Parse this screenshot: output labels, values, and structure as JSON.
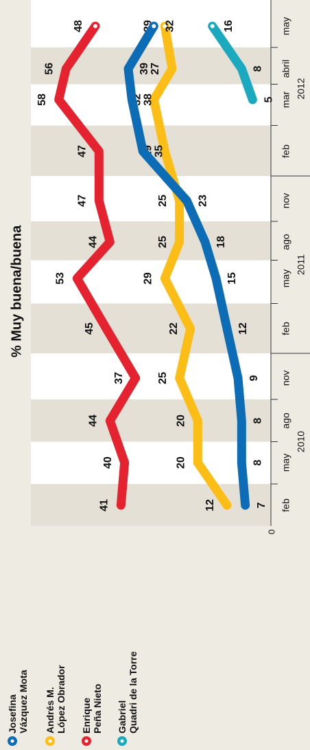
{
  "chart_data": {
    "type": "line",
    "title": "% Muy buena/buena",
    "categories": [
      "feb",
      "may",
      "ago",
      "nov",
      "feb",
      "may",
      "ago",
      "nov",
      "feb",
      "mar",
      "abril",
      "may"
    ],
    "year_labels": [
      "2010",
      "2011",
      "2012"
    ],
    "series": [
      {
        "name": "Andrés M.\nLópez Obrador",
        "color": "#fdbd17",
        "values": [
          12,
          20,
          20,
          25,
          22,
          29,
          25,
          25,
          29,
          32,
          27,
          29
        ]
      },
      {
        "name": "Josefina\nVázquez Mota",
        "color": "#0d6cb6",
        "values": [
          7,
          8,
          8,
          9,
          12,
          15,
          18,
          23,
          35,
          38,
          39,
          32
        ]
      },
      {
        "name": "Enrique\nPeña Nieto",
        "color": "#e5222f",
        "values": [
          41,
          40,
          44,
          37,
          45,
          53,
          44,
          47,
          47,
          58,
          56,
          48
        ]
      },
      {
        "name": "Gabriel\nQuadri de la Torre",
        "color": "#1aa9bf",
        "values": [
          null,
          null,
          null,
          null,
          null,
          null,
          null,
          null,
          null,
          5,
          8,
          16
        ]
      }
    ],
    "ylim": [
      0,
      60
    ],
    "yticks": [
      0
    ]
  }
}
